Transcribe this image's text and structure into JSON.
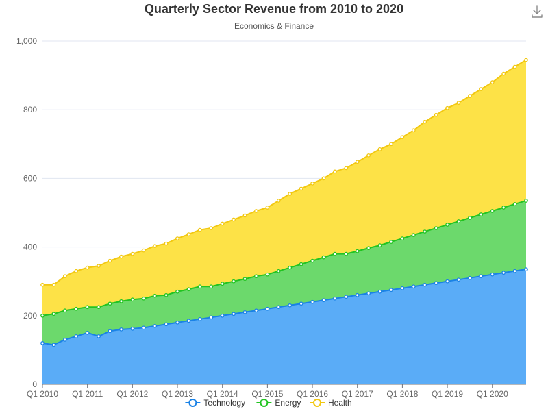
{
  "toolbar": {
    "download_icon": "download-icon"
  },
  "chart_data": {
    "type": "area",
    "stacked": true,
    "title": "Quarterly Sector Revenue from 2010 to 2020",
    "subtitle": "Economics & Finance",
    "ylim": [
      0,
      1000
    ],
    "y_ticks": [
      0,
      200,
      400,
      600,
      800,
      1000
    ],
    "y_tick_labels": [
      "0",
      "200",
      "400",
      "600",
      "800",
      "1,000"
    ],
    "x_tick_labels": [
      "Q1 2010",
      "Q1 2011",
      "Q1 2012",
      "Q1 2013",
      "Q1 2014",
      "Q1 2015",
      "Q1 2016",
      "Q1 2017",
      "Q1 2018",
      "Q1 2019",
      "Q1 2020"
    ],
    "grid": true,
    "legend_position": "bottom",
    "x": [
      "Q1 2010",
      "Q2 2010",
      "Q3 2010",
      "Q4 2010",
      "Q1 2011",
      "Q2 2011",
      "Q3 2011",
      "Q4 2011",
      "Q1 2012",
      "Q2 2012",
      "Q3 2012",
      "Q4 2012",
      "Q1 2013",
      "Q2 2013",
      "Q3 2013",
      "Q4 2013",
      "Q1 2014",
      "Q2 2014",
      "Q3 2014",
      "Q4 2014",
      "Q1 2015",
      "Q2 2015",
      "Q3 2015",
      "Q4 2015",
      "Q1 2016",
      "Q2 2016",
      "Q3 2016",
      "Q4 2016",
      "Q1 2017",
      "Q2 2017",
      "Q3 2017",
      "Q4 2017",
      "Q1 2018",
      "Q2 2018",
      "Q3 2018",
      "Q4 2018",
      "Q1 2019",
      "Q2 2019",
      "Q3 2019",
      "Q4 2019",
      "Q1 2020",
      "Q2 2020",
      "Q3 2020",
      "Q4 2020"
    ],
    "series": [
      {
        "name": "Technology",
        "color": "#1a82e6",
        "fill": "#5aacf7",
        "values": [
          120,
          115,
          130,
          140,
          150,
          140,
          155,
          160,
          162,
          165,
          170,
          175,
          180,
          185,
          190,
          195,
          200,
          205,
          210,
          215,
          220,
          225,
          230,
          235,
          240,
          245,
          250,
          255,
          260,
          265,
          270,
          275,
          280,
          285,
          290,
          295,
          300,
          305,
          310,
          315,
          320,
          325,
          330,
          335
        ]
      },
      {
        "name": "Energy",
        "color": "#22c422",
        "fill": "#6cd96c",
        "values": [
          80,
          90,
          85,
          80,
          75,
          85,
          80,
          82,
          85,
          85,
          88,
          85,
          90,
          92,
          95,
          90,
          93,
          95,
          97,
          100,
          100,
          105,
          110,
          115,
          120,
          125,
          130,
          125,
          128,
          132,
          135,
          140,
          145,
          150,
          155,
          160,
          165,
          170,
          175,
          180,
          185,
          190,
          195,
          200
        ]
      },
      {
        "name": "Health",
        "color": "#f2c811",
        "fill": "#fde247",
        "values": [
          90,
          85,
          100,
          110,
          115,
          120,
          125,
          130,
          133,
          140,
          145,
          150,
          155,
          160,
          165,
          170,
          175,
          180,
          185,
          190,
          195,
          205,
          215,
          220,
          225,
          230,
          240,
          250,
          260,
          270,
          280,
          285,
          295,
          305,
          320,
          330,
          340,
          345,
          355,
          365,
          375,
          390,
          400,
          410
        ]
      }
    ]
  }
}
